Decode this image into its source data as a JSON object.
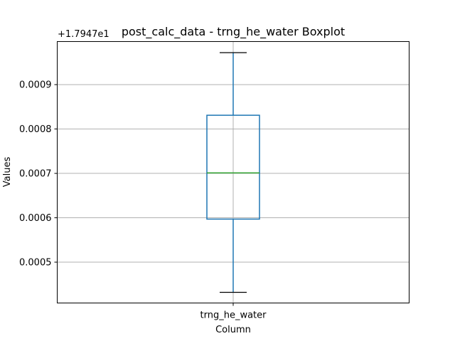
{
  "chart_data": {
    "type": "box",
    "title": "post_calc_data - trng_he_water Boxplot",
    "xlabel": "Column",
    "ylabel": "Values",
    "offset_label": "+1.7947e1",
    "categories": [
      "trng_he_water"
    ],
    "boxes": [
      {
        "category": "trng_he_water",
        "whisker_low": 0.000432,
        "q1": 0.000597,
        "median": 0.000701,
        "q3": 0.000831,
        "whisker_high": 0.000972
      }
    ],
    "ylim": [
      0.000408,
      0.000997
    ],
    "yticks": [
      0.0005,
      0.0006,
      0.0007,
      0.0008,
      0.0009
    ],
    "ytick_labels": [
      "0.0005",
      "0.0006",
      "0.0007",
      "0.0008",
      "0.0009"
    ],
    "grid": true,
    "colors": {
      "box": "#1f77b4",
      "median": "#2ca02c",
      "whisker": "#1f77b4",
      "cap": "#000000",
      "grid": "#b0b0b0"
    }
  }
}
